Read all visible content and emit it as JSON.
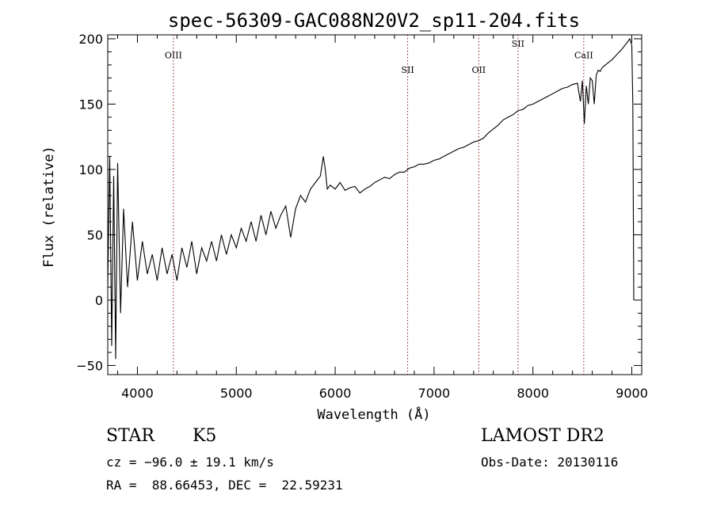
{
  "title": "spec-56309-GAC088N20V2_sp11-204.fits",
  "chart_data": {
    "type": "line",
    "xlabel": "Wavelength (Å)",
    "ylabel": "Flux (relative)",
    "xlim": [
      3700,
      9100
    ],
    "ylim": [
      -57,
      203
    ],
    "xticks": [
      4000,
      5000,
      6000,
      7000,
      8000,
      9000
    ],
    "yticks": [
      -50,
      0,
      50,
      100,
      150,
      200
    ],
    "grid": false,
    "line_color": "#000000",
    "marker_color": "#8b1a1a",
    "lines": [
      {
        "name": "OIII",
        "wavelength": 4364,
        "label_y": 185
      },
      {
        "name": "SII",
        "wavelength": 6733,
        "label_y": 174
      },
      {
        "name": "OII",
        "wavelength": 7452,
        "label_y": 174
      },
      {
        "name": "SII",
        "wavelength": 7849,
        "label_y": 194
      },
      {
        "name": "CaII",
        "wavelength": 8514,
        "label_y": 185
      }
    ],
    "x": [
      3700,
      3720,
      3740,
      3760,
      3780,
      3800,
      3830,
      3860,
      3900,
      3950,
      4000,
      4050,
      4100,
      4150,
      4200,
      4250,
      4300,
      4350,
      4400,
      4450,
      4500,
      4550,
      4600,
      4650,
      4700,
      4750,
      4800,
      4850,
      4900,
      4950,
      5000,
      5050,
      5100,
      5150,
      5200,
      5250,
      5300,
      5350,
      5400,
      5450,
      5500,
      5550,
      5600,
      5650,
      5700,
      5750,
      5800,
      5850,
      5880,
      5900,
      5920,
      5950,
      6000,
      6050,
      6100,
      6150,
      6200,
      6250,
      6300,
      6350,
      6400,
      6450,
      6500,
      6550,
      6600,
      6650,
      6700,
      6750,
      6800,
      6850,
      6900,
      6950,
      7000,
      7050,
      7100,
      7150,
      7200,
      7250,
      7300,
      7350,
      7400,
      7450,
      7500,
      7550,
      7600,
      7650,
      7700,
      7750,
      7800,
      7850,
      7900,
      7950,
      8000,
      8050,
      8100,
      8150,
      8200,
      8250,
      8300,
      8350,
      8400,
      8450,
      8480,
      8500,
      8520,
      8540,
      8560,
      8580,
      8600,
      8620,
      8640,
      8660,
      8680,
      8700,
      8750,
      8800,
      8850,
      8900,
      8950,
      8980,
      9000,
      9010,
      9020
    ],
    "values": [
      10,
      110,
      -35,
      95,
      -45,
      105,
      -10,
      70,
      10,
      60,
      15,
      45,
      20,
      35,
      15,
      40,
      20,
      35,
      15,
      40,
      25,
      45,
      20,
      40,
      30,
      45,
      30,
      50,
      35,
      50,
      40,
      55,
      45,
      60,
      45,
      65,
      50,
      68,
      55,
      65,
      72,
      48,
      70,
      80,
      75,
      85,
      90,
      95,
      110,
      100,
      85,
      88,
      85,
      90,
      84,
      86,
      87,
      82,
      85,
      87,
      90,
      92,
      94,
      93,
      96,
      98,
      98,
      101,
      102,
      104,
      104,
      105,
      107,
      108,
      110,
      112,
      114,
      116,
      117,
      119,
      121,
      122,
      124,
      128,
      131,
      134,
      138,
      140,
      142,
      145,
      146,
      149,
      150,
      152,
      154,
      156,
      158,
      160,
      162,
      163,
      165,
      166,
      152,
      168,
      135,
      164,
      150,
      170,
      168,
      150,
      172,
      176,
      175,
      178,
      181,
      184,
      188,
      192,
      197,
      200,
      195,
      150,
      0
    ]
  },
  "info": {
    "class": "STAR",
    "subclass": "K5",
    "survey": "LAMOST DR2",
    "cz": "cz = −96.0 ± 19.1 km/s",
    "obs_date": "Obs-Date: 20130116",
    "coords": "RA =  88.66453, DEC =  22.59231"
  }
}
